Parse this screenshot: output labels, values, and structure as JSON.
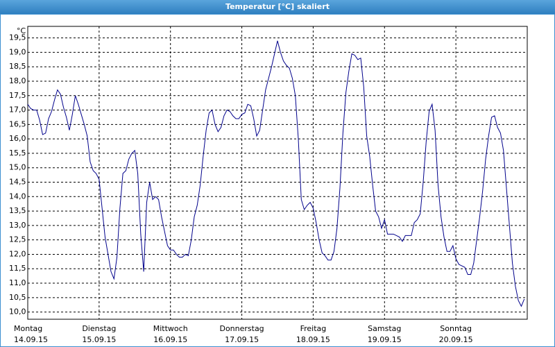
{
  "chart_data": {
    "type": "line",
    "title": "Temperatur [°C] skaliert",
    "y_unit": "°C",
    "x_day_labels": [
      "Montag",
      "Dienstag",
      "Mittwoch",
      "Donnerstag",
      "Freitag",
      "Samstag",
      "Sonntag"
    ],
    "x_date_labels": [
      "14.09.15",
      "15.09.15",
      "16.09.15",
      "17.09.15",
      "18.09.15",
      "19.09.15",
      "20.09.15"
    ],
    "xticks": [
      0,
      24,
      48,
      72,
      96,
      120,
      144
    ],
    "xlim": [
      0,
      168
    ],
    "ylim": [
      9.75,
      19.9
    ],
    "yticks": [
      {
        "value": 10,
        "label": "10,0"
      },
      {
        "value": 10.5,
        "label": "10,5"
      },
      {
        "value": 11,
        "label": "11,0"
      },
      {
        "value": 11.5,
        "label": "11,5"
      },
      {
        "value": 12,
        "label": "12,0"
      },
      {
        "value": 12.5,
        "label": "12,5"
      },
      {
        "value": 13,
        "label": "13,0"
      },
      {
        "value": 13.5,
        "label": "13,5"
      },
      {
        "value": 14,
        "label": "14,0"
      },
      {
        "value": 14.5,
        "label": "14,5"
      },
      {
        "value": 15,
        "label": "15,0"
      },
      {
        "value": 15.5,
        "label": "15,5"
      },
      {
        "value": 16,
        "label": "16,0"
      },
      {
        "value": 16.5,
        "label": "16,5"
      },
      {
        "value": 17,
        "label": "17,0"
      },
      {
        "value": 17.5,
        "label": "17,5"
      },
      {
        "value": 18,
        "label": "18,0"
      },
      {
        "value": 18.5,
        "label": "18,5"
      },
      {
        "value": 19,
        "label": "19,0"
      },
      {
        "value": 19.5,
        "label": "19,5"
      }
    ],
    "grid": true,
    "color": "#00008b",
    "x": [
      0,
      1,
      2,
      3,
      4,
      5,
      6,
      7,
      8,
      9,
      10,
      11,
      12,
      13,
      14,
      15,
      16,
      17,
      18,
      19,
      20,
      21,
      22,
      23,
      24,
      25,
      26,
      27,
      28,
      29,
      30,
      31,
      32,
      33,
      34,
      35,
      36,
      37,
      38,
      39,
      40,
      41,
      42,
      43,
      44,
      45,
      46,
      47,
      48,
      49,
      50,
      51,
      52,
      53,
      54,
      55,
      56,
      57,
      58,
      59,
      60,
      61,
      62,
      63,
      64,
      65,
      66,
      67,
      68,
      69,
      70,
      71,
      72,
      73,
      74,
      75,
      76,
      77,
      78,
      79,
      80,
      81,
      82,
      83,
      84,
      85,
      86,
      87,
      88,
      89,
      90,
      91,
      92,
      93,
      94,
      95,
      96,
      97,
      98,
      99,
      100,
      101,
      102,
      103,
      104,
      105,
      106,
      107,
      108,
      109,
      110,
      111,
      112,
      113,
      114,
      115,
      116,
      117,
      118,
      119,
      120,
      121,
      122,
      123,
      124,
      125,
      126,
      127,
      128,
      129,
      130,
      131,
      132,
      133,
      134,
      135,
      136,
      137,
      138,
      139,
      140,
      141,
      142,
      143,
      144,
      145,
      146,
      147,
      148,
      149,
      150,
      151,
      152,
      153,
      154,
      155,
      156,
      157,
      158,
      159,
      160,
      161,
      162,
      163,
      164,
      165,
      166,
      167
    ],
    "values": [
      17.2,
      17.05,
      17.0,
      17.0,
      16.65,
      16.15,
      16.2,
      16.7,
      16.95,
      17.35,
      17.7,
      17.55,
      17.1,
      16.75,
      16.3,
      16.85,
      17.5,
      17.2,
      16.85,
      16.5,
      16.1,
      15.2,
      14.9,
      14.8,
      14.6,
      13.6,
      12.6,
      12.0,
      11.4,
      11.15,
      11.9,
      13.6,
      14.8,
      14.9,
      15.3,
      15.5,
      15.6,
      14.8,
      12.7,
      11.4,
      13.8,
      14.5,
      13.9,
      14.0,
      13.9,
      13.3,
      12.8,
      12.3,
      12.15,
      12.15,
      12.0,
      11.9,
      11.9,
      12.0,
      11.95,
      12.5,
      13.3,
      13.7,
      14.4,
      15.4,
      16.3,
      16.9,
      17.0,
      16.5,
      16.25,
      16.4,
      16.8,
      17.0,
      16.95,
      16.8,
      16.7,
      16.7,
      16.85,
      16.9,
      17.2,
      17.15,
      16.7,
      16.1,
      16.3,
      17.0,
      17.7,
      18.1,
      18.5,
      18.95,
      19.4,
      19.0,
      18.7,
      18.55,
      18.45,
      18.1,
      17.5,
      16.0,
      13.9,
      13.55,
      13.7,
      13.8,
      13.6,
      13.1,
      12.5,
      12.05,
      11.95,
      11.8,
      11.8,
      12.1,
      12.9,
      14.3,
      16.2,
      17.6,
      18.35,
      18.95,
      18.9,
      18.75,
      18.8,
      17.8,
      16.1,
      15.4,
      14.4,
      13.5,
      13.3,
      12.9,
      13.2,
      12.7,
      12.7,
      12.7,
      12.65,
      12.6,
      12.45,
      12.65,
      12.65,
      12.65,
      13.1,
      13.2,
      13.4,
      14.5,
      15.9,
      16.95,
      17.2,
      16.3,
      14.4,
      13.3,
      12.6,
      12.1,
      12.1,
      12.3,
      11.85,
      11.65,
      11.6,
      11.55,
      11.3,
      11.3,
      11.7,
      12.5,
      13.3,
      14.2,
      15.3,
      16.1,
      16.75,
      16.8,
      16.4,
      16.2,
      15.6,
      14.3,
      13.0,
      11.7,
      10.9,
      10.4,
      10.2,
      10.45
    ]
  }
}
